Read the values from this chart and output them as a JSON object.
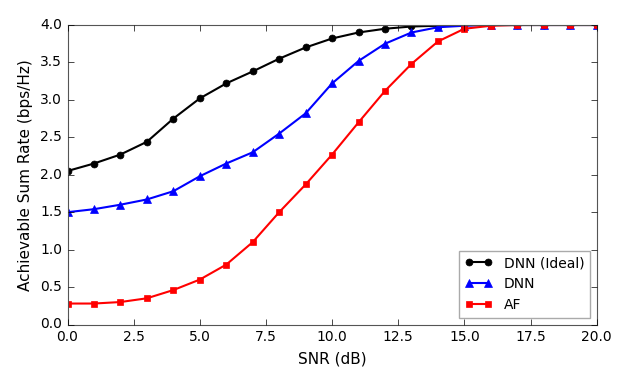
{
  "title": "",
  "xlabel": "SNR (dB)",
  "ylabel": "Achievable Sum Rate (bps/Hz)",
  "xlim": [
    0,
    20
  ],
  "ylim": [
    0.0,
    4.0
  ],
  "xticks": [
    0.0,
    2.5,
    5.0,
    7.5,
    10.0,
    12.5,
    15.0,
    17.5,
    20.0
  ],
  "yticks": [
    0.0,
    0.5,
    1.0,
    1.5,
    2.0,
    2.5,
    3.0,
    3.5,
    4.0
  ],
  "dnn_ideal": {
    "x": [
      0,
      1,
      2,
      3,
      4,
      5,
      6,
      7,
      8,
      9,
      10,
      11,
      12,
      13,
      14,
      15,
      16,
      17,
      18,
      19,
      20
    ],
    "y": [
      2.05,
      2.15,
      2.27,
      2.44,
      2.75,
      3.02,
      3.22,
      3.38,
      3.55,
      3.7,
      3.82,
      3.9,
      3.95,
      3.98,
      3.99,
      4.0,
      4.0,
      4.0,
      4.0,
      4.0,
      4.0
    ],
    "color": "#000000",
    "marker": "o",
    "marker_size": 5,
    "linewidth": 1.5,
    "label": "DNN (Ideal)"
  },
  "dnn": {
    "x": [
      0,
      1,
      2,
      3,
      4,
      5,
      6,
      7,
      8,
      9,
      10,
      11,
      12,
      13,
      14,
      15,
      16,
      17,
      18,
      19,
      20
    ],
    "y": [
      1.5,
      1.54,
      1.6,
      1.67,
      1.78,
      1.98,
      2.15,
      2.3,
      2.55,
      2.82,
      3.22,
      3.52,
      3.75,
      3.9,
      3.97,
      3.99,
      4.0,
      4.0,
      4.0,
      4.0,
      4.0
    ],
    "color": "#0000ff",
    "marker": "^",
    "marker_size": 6,
    "linewidth": 1.5,
    "label": "DNN"
  },
  "af": {
    "x": [
      0,
      1,
      2,
      3,
      4,
      5,
      6,
      7,
      8,
      9,
      10,
      11,
      12,
      13,
      14,
      15,
      16,
      17,
      18,
      19,
      20
    ],
    "y": [
      0.28,
      0.28,
      0.3,
      0.35,
      0.46,
      0.6,
      0.8,
      1.1,
      1.5,
      1.87,
      2.27,
      2.7,
      3.12,
      3.48,
      3.78,
      3.95,
      3.99,
      4.0,
      4.0,
      4.0,
      4.0
    ],
    "color": "#ff0000",
    "marker": "s",
    "marker_size": 5,
    "linewidth": 1.5,
    "label": "AF"
  },
  "legend_loc": "lower right",
  "legend_fontsize": 10,
  "figsize": [
    6.3,
    3.84
  ],
  "dpi": 100,
  "spine_color": "#888888",
  "tick_color": "#555555",
  "label_fontsize": 11,
  "tick_fontsize": 10
}
